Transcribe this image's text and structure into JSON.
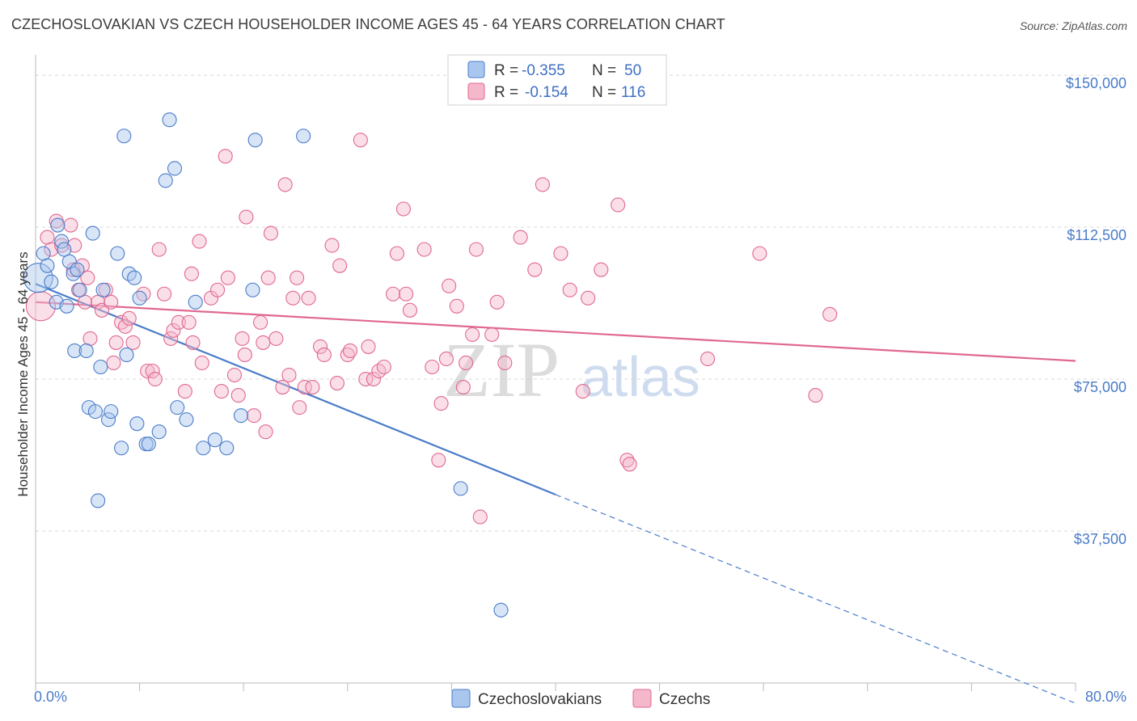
{
  "title": "CZECHOSLOVAKIAN VS CZECH HOUSEHOLDER INCOME AGES 45 - 64 YEARS CORRELATION CHART",
  "source": "Source: ZipAtlas.com",
  "watermark": {
    "zip": "ZIP",
    "atlas": "atlas"
  },
  "colors": {
    "blue": "#4a7cc9",
    "blue_fill": "#a9c6ee",
    "pink": "#e06890",
    "pink_fill": "#f5b8cb",
    "grid": "#d8d8d8"
  },
  "legend": {
    "rows": [
      {
        "r_label": "R =",
        "r_value": "-0.355",
        "n_label": "N =",
        "n_value": "50"
      },
      {
        "r_label": "R =",
        "r_value": "-0.154",
        "n_label": "N =",
        "n_value": "116"
      }
    ]
  },
  "bottom_legend": [
    "Czechoslovakians",
    "Czechs"
  ],
  "chart_data": {
    "type": "scatter",
    "title": "CZECHOSLOVAKIAN VS CZECH HOUSEHOLDER INCOME AGES 45 - 64 YEARS CORRELATION CHART",
    "xlabel": "",
    "ylabel": "Householder Income Ages 45 - 64 years",
    "xlim": [
      0,
      80
    ],
    "ylim": [
      0,
      155000
    ],
    "x_tick_labels": [
      "0.0%",
      "80.0%"
    ],
    "y_ticks": [
      37500,
      75000,
      112500,
      150000
    ],
    "y_tick_labels": [
      "$37,500",
      "$75,000",
      "$112,500",
      "$150,000"
    ],
    "series": [
      {
        "name": "Czechoslovakians",
        "trend": {
          "x0": 0,
          "y0": 98500,
          "x1": 40,
          "y1": 46500,
          "dash_x1": 80,
          "dash_y1": -5000
        },
        "points": [
          [
            0.2,
            100
          ],
          [
            0.6,
            106
          ],
          [
            0.9,
            103
          ],
          [
            1.2,
            99
          ],
          [
            1.6,
            94
          ],
          [
            1.7,
            113
          ],
          [
            2.0,
            109
          ],
          [
            2.2,
            107
          ],
          [
            2.4,
            93
          ],
          [
            2.6,
            104
          ],
          [
            2.9,
            101
          ],
          [
            3.0,
            82
          ],
          [
            3.2,
            102
          ],
          [
            3.4,
            97
          ],
          [
            3.9,
            82
          ],
          [
            4.1,
            68
          ],
          [
            4.4,
            111
          ],
          [
            4.6,
            67
          ],
          [
            4.8,
            45
          ],
          [
            5.0,
            78
          ],
          [
            5.2,
            97
          ],
          [
            5.6,
            65
          ],
          [
            5.8,
            67
          ],
          [
            6.3,
            106
          ],
          [
            6.6,
            58
          ],
          [
            6.8,
            135
          ],
          [
            7.0,
            81
          ],
          [
            7.2,
            101
          ],
          [
            7.6,
            100
          ],
          [
            7.8,
            64
          ],
          [
            8.0,
            95
          ],
          [
            8.5,
            59
          ],
          [
            8.7,
            59
          ],
          [
            9.5,
            62
          ],
          [
            10.0,
            124
          ],
          [
            10.3,
            139
          ],
          [
            10.7,
            127
          ],
          [
            10.9,
            68
          ],
          [
            11.6,
            65
          ],
          [
            12.3,
            94
          ],
          [
            12.9,
            58
          ],
          [
            13.8,
            60
          ],
          [
            14.7,
            58
          ],
          [
            15.8,
            66
          ],
          [
            16.7,
            97
          ],
          [
            16.9,
            134
          ],
          [
            20.6,
            135
          ],
          [
            32.7,
            48
          ],
          [
            35.8,
            18
          ]
        ]
      },
      {
        "name": "Czechs",
        "trend": {
          "x0": 0,
          "y0": 94000,
          "x1": 80,
          "y1": 79500
        },
        "points": [
          [
            0.4,
            93
          ],
          [
            0.9,
            110
          ],
          [
            1.2,
            107
          ],
          [
            1.6,
            114
          ],
          [
            2.0,
            108
          ],
          [
            2.7,
            113
          ],
          [
            2.9,
            102
          ],
          [
            3.0,
            108
          ],
          [
            3.3,
            97
          ],
          [
            3.6,
            103
          ],
          [
            3.8,
            94
          ],
          [
            4.0,
            100
          ],
          [
            4.2,
            85
          ],
          [
            4.8,
            94
          ],
          [
            5.1,
            92
          ],
          [
            5.4,
            97
          ],
          [
            5.8,
            94
          ],
          [
            6.0,
            79
          ],
          [
            6.2,
            84
          ],
          [
            6.6,
            89
          ],
          [
            6.9,
            88
          ],
          [
            7.2,
            90
          ],
          [
            7.5,
            84
          ],
          [
            8.3,
            96
          ],
          [
            8.6,
            77
          ],
          [
            9.0,
            77
          ],
          [
            9.2,
            75
          ],
          [
            9.5,
            107
          ],
          [
            9.9,
            96
          ],
          [
            10.4,
            85
          ],
          [
            10.6,
            87
          ],
          [
            11.0,
            89
          ],
          [
            11.5,
            72
          ],
          [
            11.8,
            89
          ],
          [
            12.0,
            101
          ],
          [
            12.1,
            84
          ],
          [
            12.6,
            109
          ],
          [
            12.8,
            79
          ],
          [
            13.5,
            95
          ],
          [
            14.0,
            97
          ],
          [
            14.3,
            72
          ],
          [
            14.6,
            130
          ],
          [
            14.8,
            100
          ],
          [
            15.3,
            76
          ],
          [
            15.6,
            71
          ],
          [
            15.9,
            85
          ],
          [
            16.1,
            81
          ],
          [
            16.2,
            115
          ],
          [
            16.8,
            66
          ],
          [
            17.3,
            89
          ],
          [
            17.5,
            84
          ],
          [
            17.7,
            62
          ],
          [
            17.9,
            100
          ],
          [
            18.1,
            111
          ],
          [
            18.5,
            85
          ],
          [
            19.0,
            73
          ],
          [
            19.2,
            123
          ],
          [
            19.5,
            76
          ],
          [
            19.8,
            95
          ],
          [
            20.1,
            100
          ],
          [
            20.3,
            68
          ],
          [
            20.7,
            73
          ],
          [
            21.0,
            95
          ],
          [
            21.3,
            73
          ],
          [
            21.9,
            83
          ],
          [
            22.2,
            81
          ],
          [
            22.8,
            108
          ],
          [
            23.2,
            74
          ],
          [
            23.4,
            103
          ],
          [
            24.0,
            81
          ],
          [
            24.2,
            82
          ],
          [
            25.0,
            134
          ],
          [
            25.4,
            75
          ],
          [
            25.6,
            83
          ],
          [
            26.0,
            75
          ],
          [
            26.4,
            77
          ],
          [
            26.8,
            78
          ],
          [
            27.5,
            96
          ],
          [
            27.8,
            106
          ],
          [
            28.3,
            117
          ],
          [
            28.5,
            96
          ],
          [
            28.8,
            92
          ],
          [
            29.9,
            107
          ],
          [
            30.5,
            78
          ],
          [
            31.0,
            55
          ],
          [
            31.2,
            69
          ],
          [
            31.6,
            80
          ],
          [
            31.8,
            98
          ],
          [
            32.4,
            93
          ],
          [
            32.9,
            73
          ],
          [
            33.1,
            79
          ],
          [
            33.6,
            86
          ],
          [
            33.9,
            107
          ],
          [
            34.2,
            41
          ],
          [
            35.1,
            86
          ],
          [
            35.5,
            94
          ],
          [
            36.1,
            79
          ],
          [
            37.3,
            110
          ],
          [
            38.4,
            102
          ],
          [
            39.0,
            123
          ],
          [
            40.4,
            106
          ],
          [
            41.1,
            97
          ],
          [
            42.1,
            72
          ],
          [
            42.5,
            95
          ],
          [
            43.5,
            102
          ],
          [
            44.8,
            118
          ],
          [
            45.5,
            55
          ],
          [
            45.7,
            54
          ],
          [
            51.7,
            80
          ],
          [
            55.7,
            106
          ],
          [
            60.0,
            71
          ],
          [
            61.1,
            91
          ]
        ]
      }
    ]
  }
}
